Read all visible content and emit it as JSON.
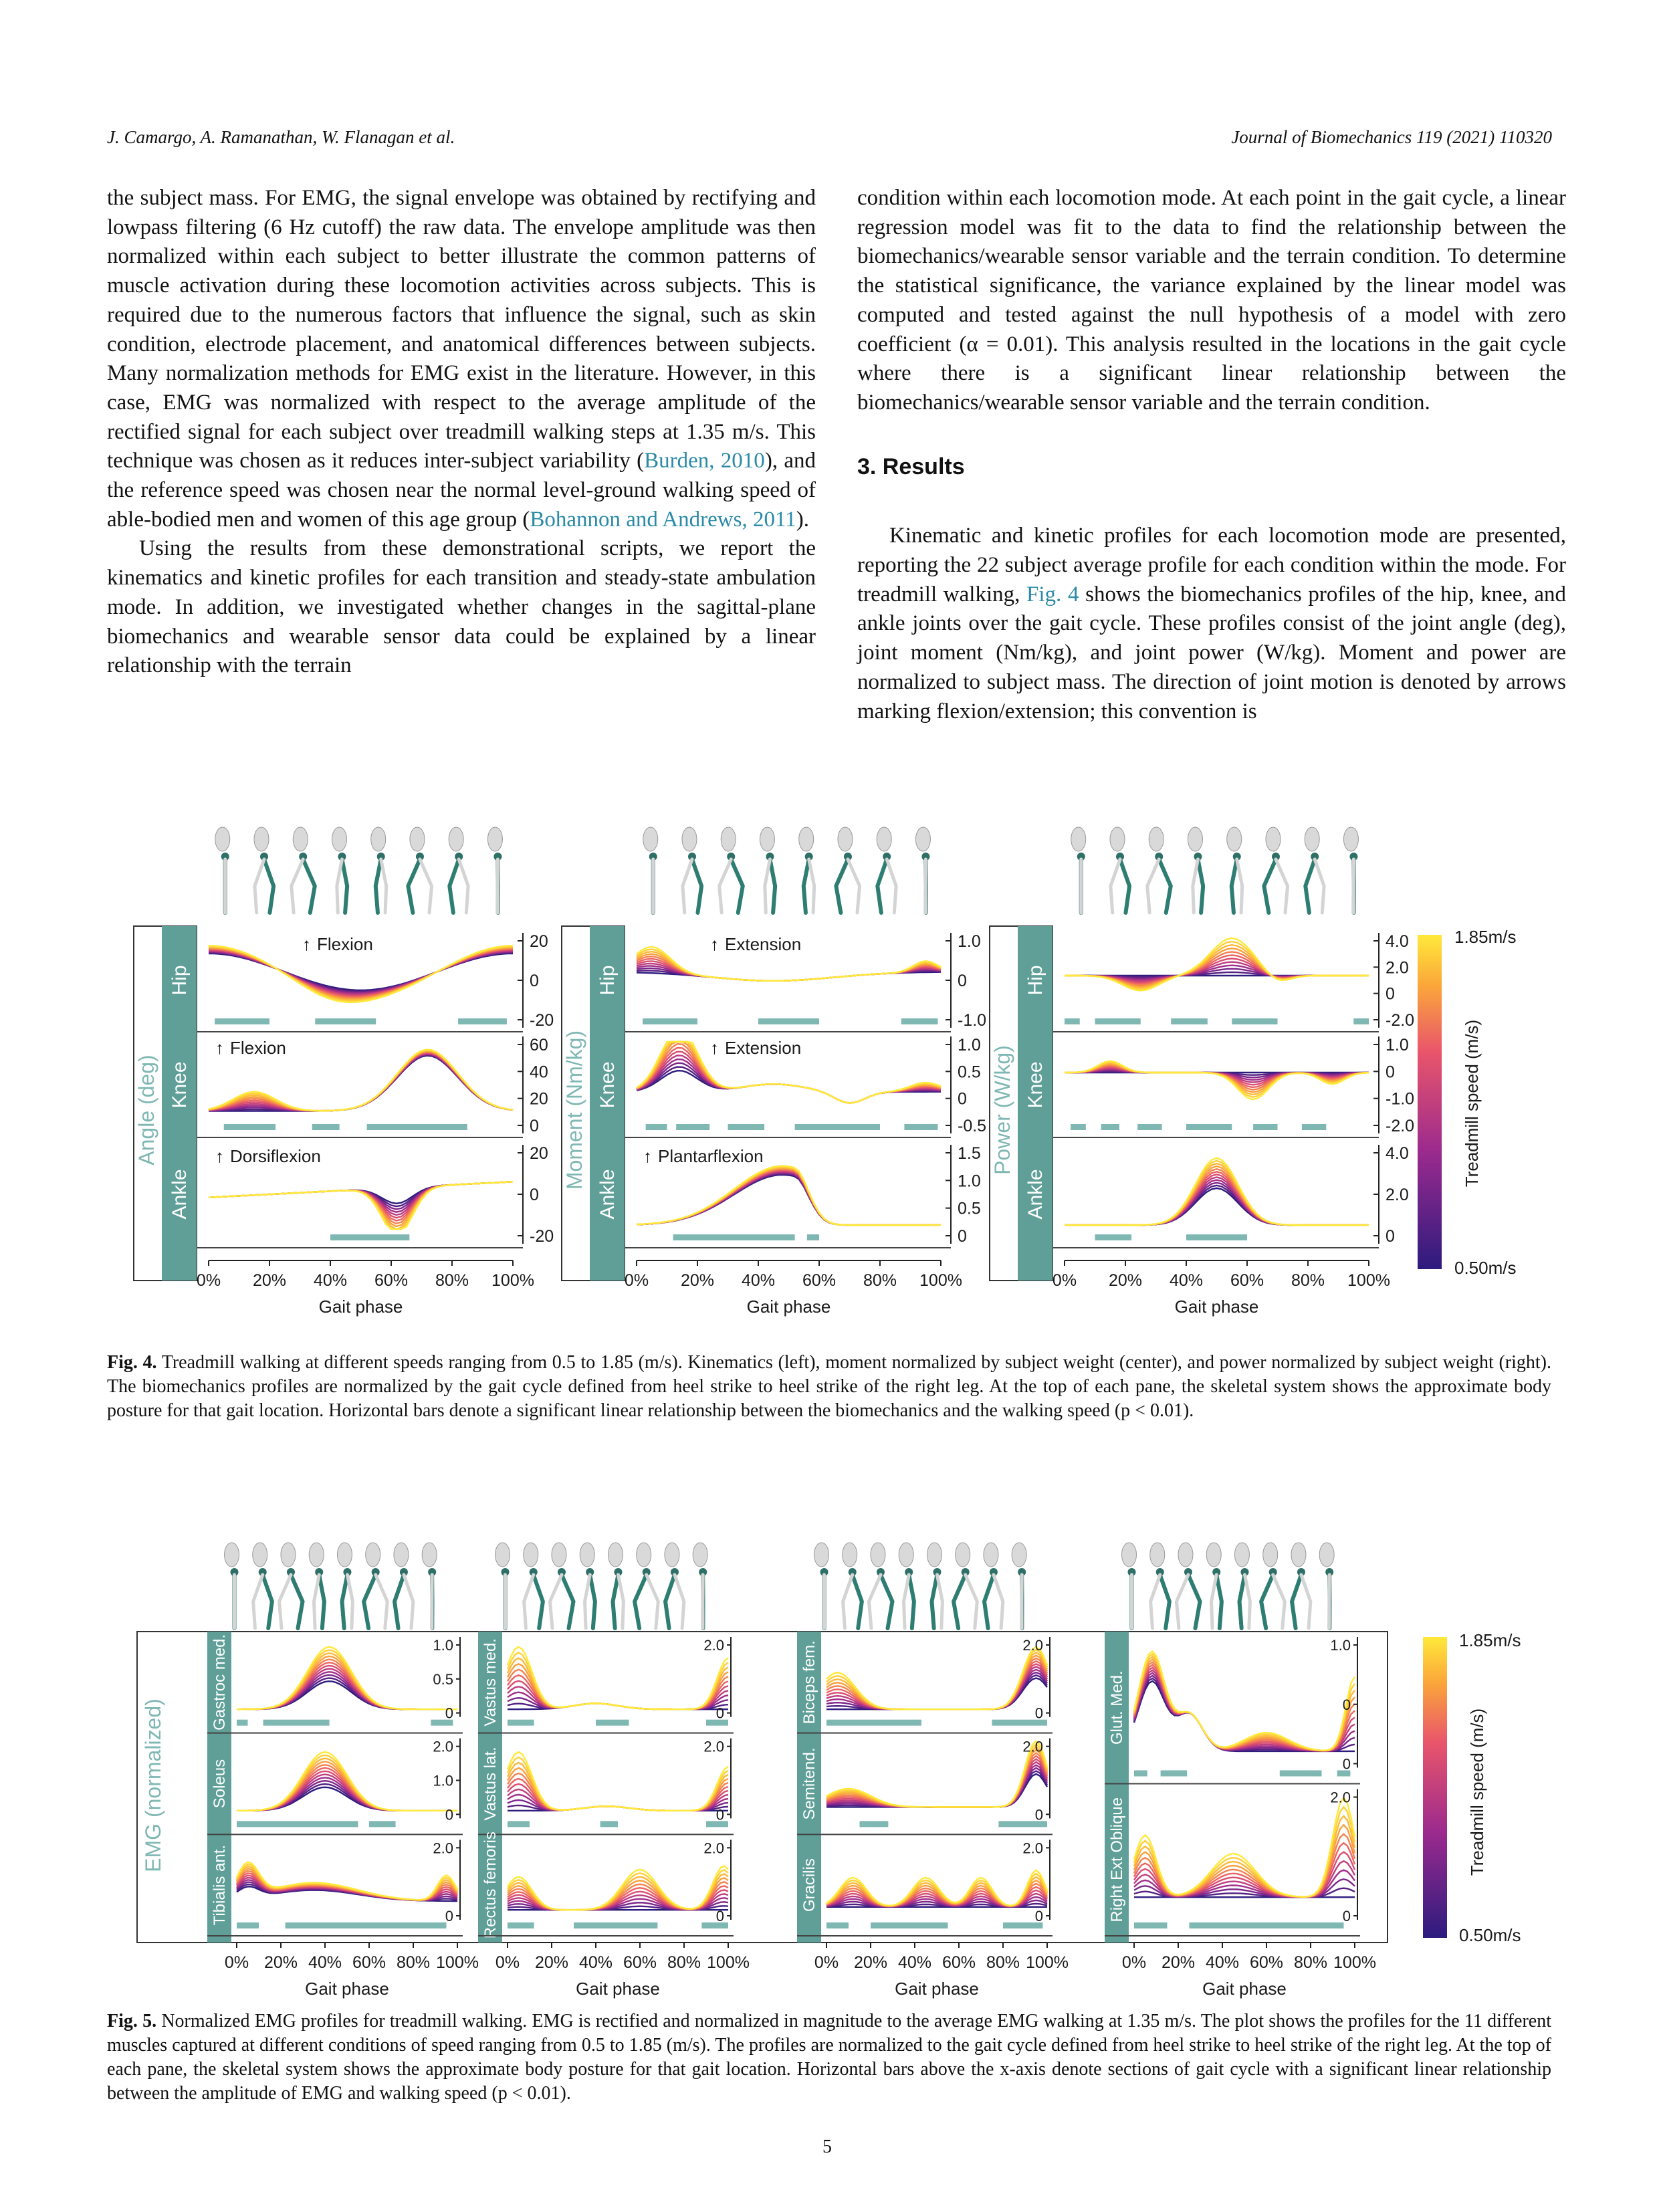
{
  "header": {
    "authors": "J. Camargo, A. Ramanathan, W. Flanagan et al.",
    "journal": "Journal of Biomechanics 119 (2021) 110320"
  },
  "left_column": {
    "p1_a": "the subject mass. For EMG, the signal envelope was obtained by rectifying and lowpass filtering (6 Hz cutoff) the raw data. The envelope amplitude was then normalized within each subject to better illustrate the common patterns of muscle activation during these locomotion activities across subjects. This is required due to the numerous factors that influence the signal, such as skin condition, electrode placement, and anatomical differences between subjects. Many normalization methods for EMG exist in the literature. However, in this case, EMG was normalized with respect to the average amplitude of the rectified signal for each subject over treadmill walking steps at 1.35 m/s. This technique was chosen as it reduces inter-subject variability (",
    "cite1": "Burden, 2010",
    "p1_b": "), and the reference speed was chosen near the normal level-ground walking speed of able-bodied men and women of this age group (",
    "cite2": "Bohannon and Andrews, 2011",
    "p1_c": ").",
    "p2": "Using the results from these demonstrational scripts, we report the kinematics and kinetic profiles for each transition and steady-state ambulation mode. In addition, we investigated whether changes in the sagittal-plane biomechanics and wearable sensor data could be explained by a linear relationship with the terrain"
  },
  "right_column": {
    "p1": "condition within each locomotion mode. At each point in the gait cycle, a linear regression model was fit to the data to find the relationship between the biomechanics/wearable sensor variable and the terrain condition. To determine the statistical significance, the variance explained by the linear model was computed and tested against the null hypothesis of a model with zero coefficient (α = 0.01). This analysis resulted in the locations in the gait cycle where there is a significant linear relationship between the biomechanics/wearable sensor variable and the terrain condition.",
    "section_heading": "3. Results",
    "p2_a": "Kinematic and kinetic profiles for each locomotion mode are presented, reporting the 22 subject average profile for each condition within the mode. For treadmill walking, ",
    "fig_ref": "Fig. 4",
    "p2_b": " shows the biomechanics profiles of the hip, knee, and ankle joints over the gait cycle. These profiles consist of the joint angle (deg), joint moment (Nm/kg), and joint power (W/kg). Moment and power are normalized to subject mass. The direction of joint motion is denoted by arrows marking flexion/extension; this convention is"
  },
  "fig4": {
    "panel_labels": [
      "Angle (deg)",
      "Moment (Nm/kg)",
      "Power (W/kg)"
    ],
    "joints": [
      "Hip",
      "Knee",
      "Ankle"
    ],
    "angle_annotations": [
      "Flexion",
      "Flexion",
      "Dorsiflexion"
    ],
    "moment_annotations": [
      "Extension",
      "Extension",
      "Plantarflexion"
    ],
    "angle_ticks": [
      [
        "20",
        "0",
        "-20"
      ],
      [
        "60",
        "40",
        "20",
        "0"
      ],
      [
        "20",
        "0",
        "-20"
      ]
    ],
    "moment_ticks": [
      [
        "1.0",
        "0",
        "-1.0"
      ],
      [
        "1.0",
        "0.5",
        "0",
        "-0.5"
      ],
      [
        "1.5",
        "1.0",
        "0.5",
        "0"
      ]
    ],
    "power_ticks": [
      [
        "4.0",
        "2.0",
        "0",
        "-2.0"
      ],
      [
        "1.0",
        "0",
        "-1.0",
        "-2.0"
      ],
      [
        "4.0",
        "2.0",
        "0"
      ]
    ],
    "x_ticks": [
      "0%",
      "20%",
      "40%",
      "60%",
      "80%",
      "100%"
    ],
    "x_label": "Gait phase",
    "colorbar_top": "1.85m/s",
    "colorbar_bottom": "0.50m/s",
    "colorbar_label": "Treadmill speed (m/s)",
    "caption_label": "Fig. 4.",
    "caption": "Treadmill walking at different speeds ranging from 0.5 to 1.85 (m/s). Kinematics (left), moment normalized by subject weight (center), and power normalized by subject weight (right). The biomechanics profiles are normalized by the gait cycle defined from heel strike to heel strike of the right leg. At the top of each pane, the skeletal system shows the approximate body posture for that gait location. Horizontal bars denote a significant linear relationship between the biomechanics and the walking speed (p < 0.01)."
  },
  "fig5": {
    "panel_label": "EMG (normalized)",
    "col1_muscles": [
      "Gastroc med.",
      "Soleus",
      "Tibialis ant."
    ],
    "col2_muscles": [
      "Vastus med.",
      "Vastus lat.",
      "Rectus femoris"
    ],
    "col3_muscles": [
      "Biceps fem.",
      "Semitend.",
      "Gracilis"
    ],
    "col4_muscles": [
      "Glut. Med.",
      "Right Ext Oblique"
    ],
    "col1_ticks": [
      [
        "1.0",
        "0.5",
        "0"
      ],
      [
        "2.0",
        "1.0",
        "0"
      ],
      [
        "2.0",
        "0"
      ]
    ],
    "col2_ticks": [
      [
        "2.0",
        "0"
      ],
      [
        "2.0",
        "0"
      ],
      [
        "2.0",
        "0"
      ]
    ],
    "col3_ticks": [
      [
        "2.0",
        "0"
      ],
      [
        "2.0",
        "0"
      ],
      [
        "2.0",
        "0"
      ]
    ],
    "col4_ticks": [
      [
        "1.0",
        "0",
        "0"
      ],
      [
        "2.0",
        "0"
      ]
    ],
    "x_ticks": [
      "0%",
      "20%",
      "40%",
      "60%",
      "80%",
      "100%"
    ],
    "x_label": "Gait phase",
    "colorbar_top": "1.85m/s",
    "colorbar_bottom": "0.50m/s",
    "colorbar_label": "Treadmill speed (m/s)",
    "caption_label": "Fig. 5.",
    "caption": "Normalized EMG profiles for treadmill walking. EMG is rectified and normalized in magnitude to the average EMG walking at 1.35 m/s. The plot shows the profiles for the 11 different muscles captured at different conditions of speed ranging from 0.5 to 1.85 (m/s). The profiles are normalized to the gait cycle defined from heel strike to heel strike of the right leg. At the top of each pane, the skeletal system shows the approximate body posture for that gait location. Horizontal bars above the x-axis denote sections of gait cycle with a significant linear relationship between the amplitude of EMG and walking speed (p < 0.01)."
  },
  "page_number": "5",
  "colors": {
    "teal": "#5f9f98",
    "link": "#2a8aa8",
    "speed_low": "#2d1b7e",
    "speed_mid": "#d8447a",
    "speed_high": "#ffe93a"
  }
}
